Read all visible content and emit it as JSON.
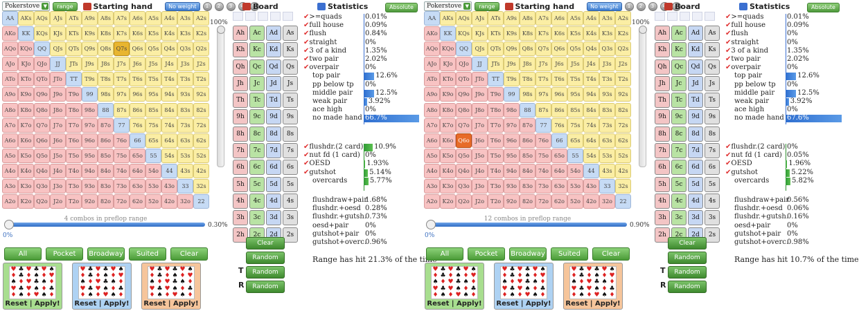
{
  "panels": [
    {
      "pokerstove_label": "Pokerstove",
      "range_label": "range",
      "starting_hand_title": "Starting hand",
      "noweight_label": "No weight",
      "weights": [
        "1",
        "2",
        "3",
        "4",
        "5"
      ],
      "board_title": "Board",
      "statistics_title": "Statistics",
      "absolute_label": "Absolute",
      "pct_top": "100%",
      "combos_text": "4 combos in preflop range",
      "range_pct": "0.30%",
      "slider_zero": "0%",
      "hslider_fraction": 0.0,
      "selected_hands": [
        "Q7s"
      ],
      "filters": [
        "All",
        "Pocket",
        "Broadway",
        "Suited",
        "Clear"
      ],
      "deck_footer": "Reset   |   Apply!",
      "deck_colors": [
        "#a8de8f",
        "#aed2f3",
        "#f6c59b"
      ],
      "board_buttons": [
        "Clear",
        "Random",
        "Random",
        "Random"
      ],
      "turn_label": "T",
      "river_label": "R",
      "stats": [
        {
          "label": ">=quads",
          "val": "0.01%",
          "chk": true,
          "bar": 0,
          "indent": false
        },
        {
          "label": "full house",
          "val": "0.09%",
          "chk": true,
          "bar": 0,
          "indent": false
        },
        {
          "label": "flush",
          "val": "0.84%",
          "chk": true,
          "bar": 0,
          "indent": false
        },
        {
          "label": "straight",
          "val": "0%",
          "chk": true,
          "bar": 0,
          "indent": false
        },
        {
          "label": "3 of a kind",
          "val": "1.35%",
          "chk": true,
          "bar": 0,
          "indent": false
        },
        {
          "label": "two pair",
          "val": "2.02%",
          "chk": true,
          "bar": 0,
          "indent": false
        },
        {
          "label": "overpair",
          "val": "0%",
          "chk": true,
          "bar": 0,
          "indent": false
        },
        {
          "label": "top pair",
          "val": "12.6%",
          "chk": false,
          "bar": 12.6,
          "indent": true
        },
        {
          "label": "pp below tp",
          "val": "0%",
          "chk": false,
          "bar": 0,
          "indent": true
        },
        {
          "label": "middle pair",
          "val": "12.5%",
          "chk": false,
          "bar": 12.5,
          "indent": true
        },
        {
          "label": "weak pair",
          "val": "3.92%",
          "chk": false,
          "bar": 3.92,
          "indent": true
        },
        {
          "label": "ace high",
          "val": "0%",
          "chk": false,
          "bar": 0,
          "indent": true
        },
        {
          "label": "no made hand",
          "val": "66.7%",
          "chk": false,
          "bar": 66.7,
          "indent": true
        }
      ],
      "draws": [
        {
          "label": "flushdr.(2 card)",
          "val": "10.9%",
          "chk": true,
          "bar": 10.9,
          "indent": false
        },
        {
          "label": "nut fd (1 card)",
          "val": "0%",
          "chk": true,
          "bar": 0,
          "indent": false
        },
        {
          "label": "OESD",
          "val": "1.93%",
          "chk": true,
          "bar": 1.93,
          "indent": false
        },
        {
          "label": "gutshot",
          "val": "5.14%",
          "chk": true,
          "bar": 5.14,
          "indent": false
        },
        {
          "label": "overcards",
          "val": "5.77%",
          "chk": false,
          "bar": 5.77,
          "indent": true
        }
      ],
      "combos_list": [
        {
          "label": "flushdraw+pair",
          "val": "1.68%"
        },
        {
          "label": "flushdr.+oesd",
          "val": "0.28%"
        },
        {
          "label": "flushdr.+gutsh.",
          "val": "0.73%"
        },
        {
          "label": "oesd+pair",
          "val": "0%"
        },
        {
          "label": "gutshot+pair",
          "val": "0%"
        },
        {
          "label": "gutshot+overc.",
          "val": "0.96%"
        }
      ],
      "range_hit_text": "Range has hit 21.3% of the time"
    },
    {
      "pokerstove_label": "Pokerstove",
      "range_label": "range",
      "starting_hand_title": "Starting hand",
      "noweight_label": "No weight",
      "weights": [
        "1",
        "2",
        "3",
        "4",
        "5"
      ],
      "board_title": "Board",
      "statistics_title": "Statistics",
      "absolute_label": "Absolute",
      "pct_top": "100%",
      "combos_text": "12 combos in preflop range",
      "range_pct": "0.90%",
      "slider_zero": "0%",
      "hslider_fraction": 0.0,
      "selected_hands": [
        "Q6o"
      ],
      "filters": [
        "All",
        "Pocket",
        "Broadway",
        "Suited",
        "Clear"
      ],
      "deck_footer": "Reset   |   Apply!",
      "deck_colors": [
        "#a8de8f",
        "#aed2f3",
        "#f6c59b"
      ],
      "board_buttons": [
        "Clear",
        "Random",
        "Random",
        "Random"
      ],
      "turn_label": "T",
      "river_label": "R",
      "stats": [
        {
          "label": ">=quads",
          "val": "0.01%",
          "chk": true,
          "bar": 0,
          "indent": false
        },
        {
          "label": "full house",
          "val": "0.09%",
          "chk": true,
          "bar": 0,
          "indent": false
        },
        {
          "label": "flush",
          "val": "0%",
          "chk": true,
          "bar": 0,
          "indent": false
        },
        {
          "label": "straight",
          "val": "0%",
          "chk": true,
          "bar": 0,
          "indent": false
        },
        {
          "label": "3 of a kind",
          "val": "1.35%",
          "chk": true,
          "bar": 0,
          "indent": false
        },
        {
          "label": "two pair",
          "val": "2.02%",
          "chk": true,
          "bar": 0,
          "indent": false
        },
        {
          "label": "overpair",
          "val": "0%",
          "chk": true,
          "bar": 0,
          "indent": false
        },
        {
          "label": "top pair",
          "val": "12.6%",
          "chk": false,
          "bar": 12.6,
          "indent": true
        },
        {
          "label": "pp below tp",
          "val": "0%",
          "chk": false,
          "bar": 0,
          "indent": true
        },
        {
          "label": "middle pair",
          "val": "12.5%",
          "chk": false,
          "bar": 12.5,
          "indent": true
        },
        {
          "label": "weak pair",
          "val": "3.92%",
          "chk": false,
          "bar": 3.92,
          "indent": true
        },
        {
          "label": "ace high",
          "val": "0%",
          "chk": false,
          "bar": 0,
          "indent": true
        },
        {
          "label": "no made hand",
          "val": "67.6%",
          "chk": false,
          "bar": 67.6,
          "indent": true
        }
      ],
      "draws": [
        {
          "label": "flushdr.(2 card)",
          "val": "0%",
          "chk": true,
          "bar": 0,
          "indent": false
        },
        {
          "label": "nut fd (1 card)",
          "val": "0.05%",
          "chk": true,
          "bar": 0,
          "indent": false
        },
        {
          "label": "OESD",
          "val": "1.96%",
          "chk": true,
          "bar": 1.96,
          "indent": false
        },
        {
          "label": "gutshot",
          "val": "5.22%",
          "chk": true,
          "bar": 5.22,
          "indent": false
        },
        {
          "label": "overcards",
          "val": "5.82%",
          "chk": false,
          "bar": 5.82,
          "indent": true
        }
      ],
      "combos_list": [
        {
          "label": "flushdraw+pair",
          "val": "0.56%"
        },
        {
          "label": "flushdr.+oesd",
          "val": "0.06%"
        },
        {
          "label": "flushdr.+gutsh.",
          "val": "0.16%"
        },
        {
          "label": "oesd+pair",
          "val": "0%"
        },
        {
          "label": "gutshot+pair",
          "val": "0%"
        },
        {
          "label": "gutshot+overc.",
          "val": "0.98%"
        }
      ],
      "range_hit_text": "Range has hit 10.7% of the time"
    }
  ],
  "ranks": [
    "A",
    "K",
    "Q",
    "J",
    "T",
    "9",
    "8",
    "7",
    "6",
    "5",
    "4",
    "3",
    "2"
  ],
  "board_ranks": [
    "A",
    "K",
    "Q",
    "J",
    "T",
    "9",
    "8",
    "7",
    "6",
    "5",
    "4",
    "3",
    "2"
  ],
  "board_suits": [
    "h",
    "c",
    "d",
    "s"
  ]
}
